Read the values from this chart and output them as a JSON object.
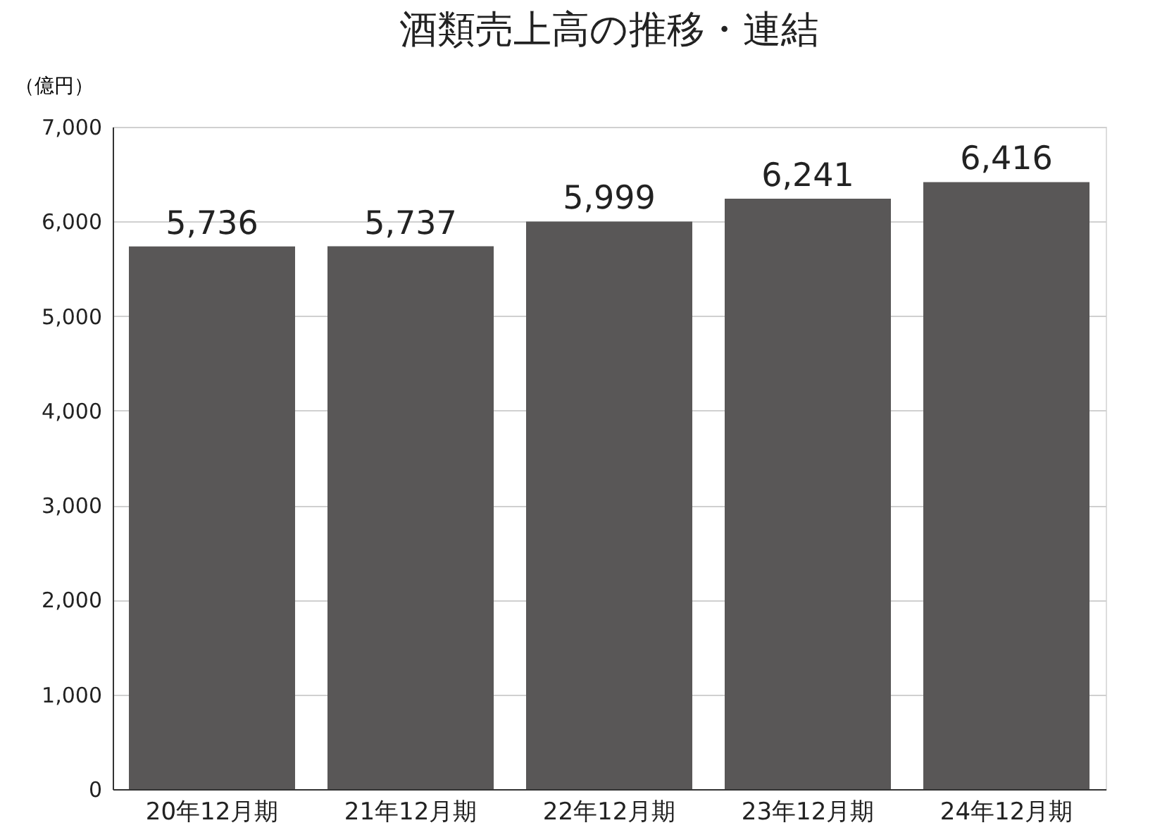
{
  "chart_data": {
    "type": "bar",
    "title": "酒類売上高の推移・連結",
    "ylabel": "（億円）",
    "categories": [
      "20年12月期",
      "21年12月期",
      "22年12月期",
      "23年12月期",
      "24年12月期"
    ],
    "values": [
      5736,
      5737,
      5999,
      6241,
      6416
    ],
    "value_labels": [
      "5,736",
      "5,737",
      "5,999",
      "6,241",
      "6,416"
    ],
    "color": "#595757",
    "ylim": [
      0,
      7000
    ],
    "yticks": [
      0,
      {
        "value": 1000,
        "label": "1,000"
      },
      {
        "value": 2000,
        "label": "2,000"
      },
      {
        "value": 3000,
        "label": "3,000"
      },
      {
        "value": 4000,
        "label": "4,000"
      },
      {
        "value": 5000,
        "label": "5,000"
      },
      {
        "value": 6000,
        "label": "6,000"
      },
      {
        "value": 7000,
        "label": "7,000"
      }
    ],
    "grid": "y"
  }
}
